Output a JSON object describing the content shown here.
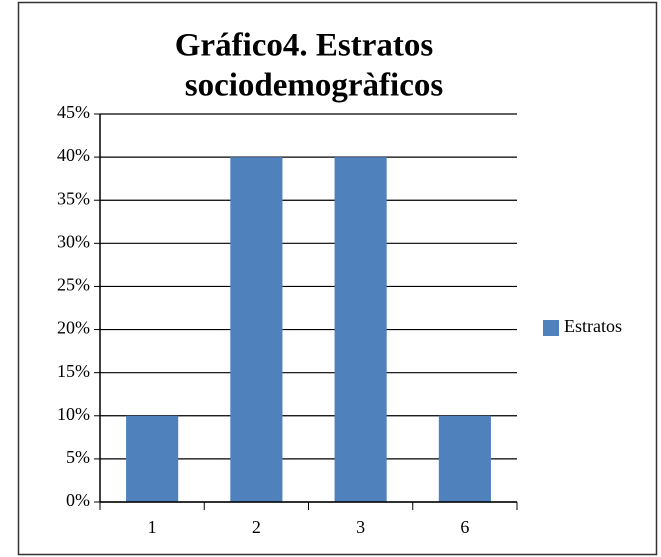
{
  "chart_data": {
    "type": "bar",
    "title": [
      "Gráfico4. Estratos",
      "sociodemogràficos"
    ],
    "categories": [
      "1",
      "2",
      "3",
      "6"
    ],
    "series": [
      {
        "name": "Estratos",
        "color": "#4f81bd",
        "values": [
          10,
          40,
          40,
          10
        ]
      }
    ],
    "ylim": [
      0,
      45
    ],
    "yticks": [
      {
        "value": 0,
        "label": "0%"
      },
      {
        "value": 5,
        "label": "5%"
      },
      {
        "value": 10,
        "label": "10%"
      },
      {
        "value": 15,
        "label": "15%"
      },
      {
        "value": 20,
        "label": "20%"
      },
      {
        "value": 25,
        "label": "25%"
      },
      {
        "value": 30,
        "label": "30%"
      },
      {
        "value": 35,
        "label": "35%"
      },
      {
        "value": 40,
        "label": "40%"
      },
      {
        "value": 45,
        "label": "45%"
      }
    ],
    "grid": true,
    "legend": "right"
  }
}
